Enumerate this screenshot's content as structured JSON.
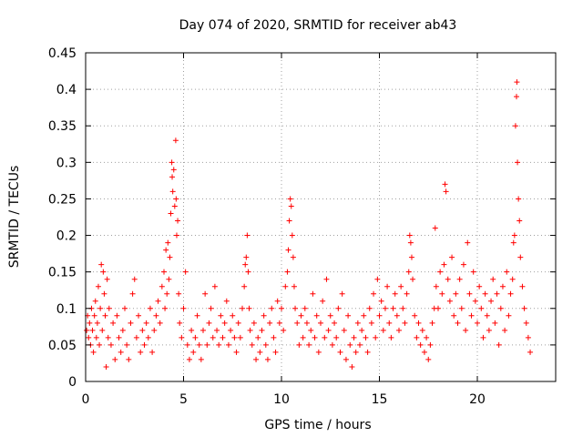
{
  "chart_data": {
    "type": "scatter",
    "title": "Day 074 of 2020, SRMTID for receiver ab43",
    "xlabel": "GPS time / hours",
    "ylabel": "SRMTID / TECUs",
    "xlim": [
      0,
      24
    ],
    "ylim": [
      0,
      0.45
    ],
    "xticks": [
      0,
      5,
      10,
      15,
      20
    ],
    "yticks": [
      0,
      0.05,
      0.1,
      0.15,
      0.2,
      0.25,
      0.3,
      0.35,
      0.4,
      0.45
    ],
    "xtick_labels": [
      "0",
      "5",
      "10",
      "15",
      "20"
    ],
    "ytick_labels": [
      "0",
      "0.05",
      "0.1",
      "0.15",
      "0.2",
      "0.25",
      "0.3",
      "0.35",
      "0.4",
      "0.45"
    ],
    "grid": true,
    "marker": "+",
    "marker_color": "#ff0000",
    "series": [
      {
        "name": "SRMTID",
        "points": [
          [
            0.05,
            0.07
          ],
          [
            0.1,
            0.09
          ],
          [
            0.15,
            0.06
          ],
          [
            0.2,
            0.08
          ],
          [
            0.25,
            0.05
          ],
          [
            0.3,
            0.1
          ],
          [
            0.35,
            0.07
          ],
          [
            0.4,
            0.04
          ],
          [
            0.45,
            0.09
          ],
          [
            0.5,
            0.11
          ],
          [
            0.55,
            0.06
          ],
          [
            0.6,
            0.08
          ],
          [
            0.65,
            0.13
          ],
          [
            0.7,
            0.05
          ],
          [
            0.75,
            0.1
          ],
          [
            0.8,
            0.16
          ],
          [
            0.85,
            0.07
          ],
          [
            0.9,
            0.15
          ],
          [
            0.95,
            0.12
          ],
          [
            1.0,
            0.09
          ],
          [
            1.05,
            0.02
          ],
          [
            1.1,
            0.14
          ],
          [
            1.15,
            0.06
          ],
          [
            1.2,
            0.1
          ],
          [
            1.3,
            0.05
          ],
          [
            1.4,
            0.08
          ],
          [
            1.5,
            0.03
          ],
          [
            1.6,
            0.09
          ],
          [
            1.7,
            0.06
          ],
          [
            1.8,
            0.04
          ],
          [
            1.9,
            0.07
          ],
          [
            2.0,
            0.1
          ],
          [
            2.1,
            0.05
          ],
          [
            2.2,
            0.03
          ],
          [
            2.3,
            0.08
          ],
          [
            2.4,
            0.12
          ],
          [
            2.5,
            0.14
          ],
          [
            2.6,
            0.06
          ],
          [
            2.7,
            0.09
          ],
          [
            2.8,
            0.04
          ],
          [
            2.9,
            0.07
          ],
          [
            3.0,
            0.05
          ],
          [
            3.1,
            0.08
          ],
          [
            3.2,
            0.06
          ],
          [
            3.3,
            0.1
          ],
          [
            3.4,
            0.04
          ],
          [
            3.5,
            0.07
          ],
          [
            3.6,
            0.09
          ],
          [
            3.7,
            0.11
          ],
          [
            3.8,
            0.08
          ],
          [
            3.9,
            0.13
          ],
          [
            4.0,
            0.15
          ],
          [
            4.05,
            0.1
          ],
          [
            4.1,
            0.18
          ],
          [
            4.15,
            0.12
          ],
          [
            4.2,
            0.19
          ],
          [
            4.25,
            0.14
          ],
          [
            4.3,
            0.17
          ],
          [
            4.35,
            0.23
          ],
          [
            4.4,
            0.3
          ],
          [
            4.42,
            0.28
          ],
          [
            4.45,
            0.26
          ],
          [
            4.5,
            0.29
          ],
          [
            4.55,
            0.24
          ],
          [
            4.6,
            0.33
          ],
          [
            4.62,
            0.25
          ],
          [
            4.65,
            0.2
          ],
          [
            4.7,
            0.22
          ],
          [
            4.75,
            0.12
          ],
          [
            4.8,
            0.08
          ],
          [
            4.9,
            0.06
          ],
          [
            5.0,
            0.1
          ],
          [
            5.1,
            0.15
          ],
          [
            5.2,
            0.05
          ],
          [
            5.3,
            0.03
          ],
          [
            5.4,
            0.07
          ],
          [
            5.5,
            0.04
          ],
          [
            5.6,
            0.06
          ],
          [
            5.7,
            0.09
          ],
          [
            5.8,
            0.05
          ],
          [
            5.9,
            0.03
          ],
          [
            6.0,
            0.07
          ],
          [
            6.1,
            0.12
          ],
          [
            6.2,
            0.05
          ],
          [
            6.3,
            0.08
          ],
          [
            6.4,
            0.1
          ],
          [
            6.5,
            0.06
          ],
          [
            6.6,
            0.13
          ],
          [
            6.7,
            0.07
          ],
          [
            6.8,
            0.05
          ],
          [
            6.9,
            0.09
          ],
          [
            7.0,
            0.06
          ],
          [
            7.1,
            0.08
          ],
          [
            7.2,
            0.11
          ],
          [
            7.3,
            0.05
          ],
          [
            7.4,
            0.07
          ],
          [
            7.5,
            0.09
          ],
          [
            7.6,
            0.06
          ],
          [
            7.7,
            0.04
          ],
          [
            7.8,
            0.08
          ],
          [
            7.9,
            0.06
          ],
          [
            8.0,
            0.1
          ],
          [
            8.1,
            0.13
          ],
          [
            8.15,
            0.16
          ],
          [
            8.2,
            0.17
          ],
          [
            8.25,
            0.2
          ],
          [
            8.3,
            0.15
          ],
          [
            8.35,
            0.1
          ],
          [
            8.4,
            0.07
          ],
          [
            8.5,
            0.05
          ],
          [
            8.6,
            0.08
          ],
          [
            8.7,
            0.03
          ],
          [
            8.8,
            0.06
          ],
          [
            8.9,
            0.04
          ],
          [
            9.0,
            0.07
          ],
          [
            9.1,
            0.09
          ],
          [
            9.2,
            0.05
          ],
          [
            9.3,
            0.03
          ],
          [
            9.4,
            0.08
          ],
          [
            9.5,
            0.1
          ],
          [
            9.6,
            0.06
          ],
          [
            9.7,
            0.04
          ],
          [
            9.8,
            0.11
          ],
          [
            9.9,
            0.08
          ],
          [
            10.0,
            0.1
          ],
          [
            10.1,
            0.07
          ],
          [
            10.2,
            0.13
          ],
          [
            10.3,
            0.15
          ],
          [
            10.35,
            0.18
          ],
          [
            10.4,
            0.22
          ],
          [
            10.45,
            0.25
          ],
          [
            10.5,
            0.24
          ],
          [
            10.55,
            0.2
          ],
          [
            10.6,
            0.17
          ],
          [
            10.65,
            0.13
          ],
          [
            10.7,
            0.1
          ],
          [
            10.8,
            0.08
          ],
          [
            10.9,
            0.05
          ],
          [
            11.0,
            0.09
          ],
          [
            11.1,
            0.06
          ],
          [
            11.2,
            0.1
          ],
          [
            11.3,
            0.08
          ],
          [
            11.4,
            0.05
          ],
          [
            11.5,
            0.07
          ],
          [
            11.6,
            0.12
          ],
          [
            11.7,
            0.06
          ],
          [
            11.8,
            0.09
          ],
          [
            11.9,
            0.04
          ],
          [
            12.0,
            0.08
          ],
          [
            12.1,
            0.11
          ],
          [
            12.2,
            0.06
          ],
          [
            12.3,
            0.14
          ],
          [
            12.4,
            0.07
          ],
          [
            12.5,
            0.09
          ],
          [
            12.6,
            0.05
          ],
          [
            12.7,
            0.08
          ],
          [
            12.8,
            0.06
          ],
          [
            12.9,
            0.1
          ],
          [
            13.0,
            0.04
          ],
          [
            13.1,
            0.12
          ],
          [
            13.2,
            0.07
          ],
          [
            13.3,
            0.03
          ],
          [
            13.4,
            0.09
          ],
          [
            13.5,
            0.05
          ],
          [
            13.6,
            0.02
          ],
          [
            13.7,
            0.06
          ],
          [
            13.8,
            0.04
          ],
          [
            13.9,
            0.08
          ],
          [
            14.0,
            0.05
          ],
          [
            14.1,
            0.07
          ],
          [
            14.2,
            0.09
          ],
          [
            14.3,
            0.06
          ],
          [
            14.4,
            0.04
          ],
          [
            14.5,
            0.1
          ],
          [
            14.6,
            0.08
          ],
          [
            14.7,
            0.12
          ],
          [
            14.8,
            0.06
          ],
          [
            14.9,
            0.14
          ],
          [
            15.0,
            0.09
          ],
          [
            15.1,
            0.11
          ],
          [
            15.2,
            0.07
          ],
          [
            15.3,
            0.1
          ],
          [
            15.4,
            0.13
          ],
          [
            15.5,
            0.08
          ],
          [
            15.6,
            0.06
          ],
          [
            15.7,
            0.1
          ],
          [
            15.8,
            0.12
          ],
          [
            15.9,
            0.09
          ],
          [
            16.0,
            0.07
          ],
          [
            16.1,
            0.13
          ],
          [
            16.2,
            0.1
          ],
          [
            16.3,
            0.08
          ],
          [
            16.4,
            0.12
          ],
          [
            16.5,
            0.15
          ],
          [
            16.55,
            0.2
          ],
          [
            16.6,
            0.19
          ],
          [
            16.65,
            0.17
          ],
          [
            16.7,
            0.14
          ],
          [
            16.8,
            0.09
          ],
          [
            16.9,
            0.06
          ],
          [
            17.0,
            0.08
          ],
          [
            17.1,
            0.05
          ],
          [
            17.2,
            0.07
          ],
          [
            17.3,
            0.04
          ],
          [
            17.4,
            0.06
          ],
          [
            17.5,
            0.03
          ],
          [
            17.6,
            0.05
          ],
          [
            17.7,
            0.08
          ],
          [
            17.8,
            0.1
          ],
          [
            17.85,
            0.21
          ],
          [
            17.9,
            0.13
          ],
          [
            18.0,
            0.1
          ],
          [
            18.1,
            0.15
          ],
          [
            18.2,
            0.12
          ],
          [
            18.3,
            0.16
          ],
          [
            18.35,
            0.27
          ],
          [
            18.4,
            0.26
          ],
          [
            18.5,
            0.14
          ],
          [
            18.6,
            0.11
          ],
          [
            18.7,
            0.17
          ],
          [
            18.8,
            0.09
          ],
          [
            18.9,
            0.12
          ],
          [
            19.0,
            0.08
          ],
          [
            19.1,
            0.14
          ],
          [
            19.2,
            0.1
          ],
          [
            19.3,
            0.16
          ],
          [
            19.4,
            0.07
          ],
          [
            19.5,
            0.19
          ],
          [
            19.6,
            0.12
          ],
          [
            19.7,
            0.09
          ],
          [
            19.8,
            0.15
          ],
          [
            19.9,
            0.11
          ],
          [
            20.0,
            0.08
          ],
          [
            20.1,
            0.13
          ],
          [
            20.2,
            0.1
          ],
          [
            20.3,
            0.06
          ],
          [
            20.4,
            0.12
          ],
          [
            20.5,
            0.09
          ],
          [
            20.6,
            0.07
          ],
          [
            20.7,
            0.11
          ],
          [
            20.8,
            0.14
          ],
          [
            20.9,
            0.08
          ],
          [
            21.0,
            0.12
          ],
          [
            21.1,
            0.05
          ],
          [
            21.2,
            0.1
          ],
          [
            21.3,
            0.13
          ],
          [
            21.4,
            0.07
          ],
          [
            21.5,
            0.15
          ],
          [
            21.6,
            0.09
          ],
          [
            21.7,
            0.12
          ],
          [
            21.8,
            0.14
          ],
          [
            21.85,
            0.19
          ],
          [
            21.9,
            0.2
          ],
          [
            21.95,
            0.35
          ],
          [
            22.0,
            0.39
          ],
          [
            22.02,
            0.41
          ],
          [
            22.05,
            0.3
          ],
          [
            22.1,
            0.25
          ],
          [
            22.15,
            0.22
          ],
          [
            22.2,
            0.17
          ],
          [
            22.3,
            0.13
          ],
          [
            22.4,
            0.1
          ],
          [
            22.5,
            0.08
          ],
          [
            22.6,
            0.06
          ],
          [
            22.7,
            0.04
          ]
        ]
      }
    ]
  }
}
